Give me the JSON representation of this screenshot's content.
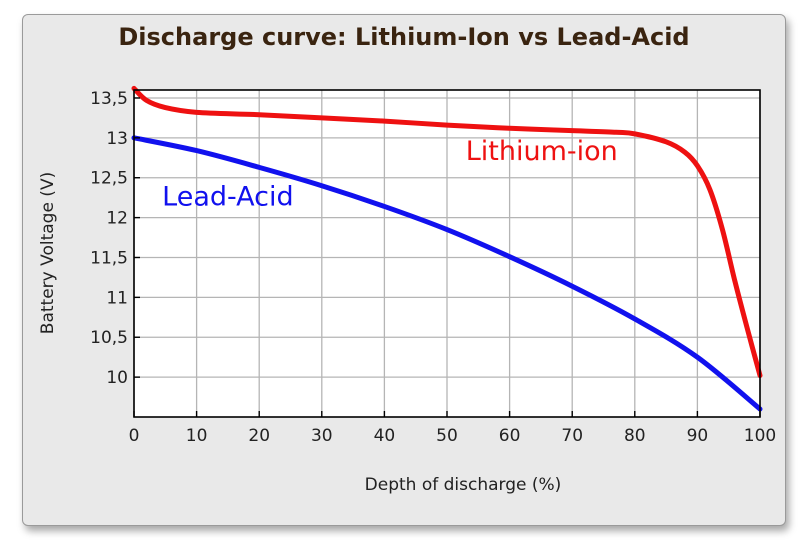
{
  "chart_data": {
    "type": "line",
    "title": "Discharge curve: Lithium-Ion vs Lead-Acid",
    "xlabel": "Depth of discharge (%)",
    "ylabel": "Battery Voltage (V)",
    "xlim": [
      0,
      100
    ],
    "ylim": [
      9.5,
      13.6
    ],
    "x_ticks": [
      {
        "v": 0,
        "label": "0"
      },
      {
        "v": 10,
        "label": "10"
      },
      {
        "v": 20,
        "label": "20"
      },
      {
        "v": 30,
        "label": "30"
      },
      {
        "v": 40,
        "label": "40"
      },
      {
        "v": 50,
        "label": "50"
      },
      {
        "v": 60,
        "label": "60"
      },
      {
        "v": 70,
        "label": "70"
      },
      {
        "v": 80,
        "label": "80"
      },
      {
        "v": 90,
        "label": "90"
      },
      {
        "v": 100,
        "label": "100"
      }
    ],
    "y_ticks": [
      {
        "v": 10,
        "label": "10"
      },
      {
        "v": 10.5,
        "label": "10,5"
      },
      {
        "v": 11,
        "label": "11"
      },
      {
        "v": 11.5,
        "label": "11,5"
      },
      {
        "v": 12,
        "label": "12"
      },
      {
        "v": 12.5,
        "label": "12,5"
      },
      {
        "v": 13,
        "label": "13"
      },
      {
        "v": 13.5,
        "label": "13,5"
      }
    ],
    "grid": true,
    "series": [
      {
        "name": "Lithium-ion",
        "color": "#ee1111",
        "x": [
          0,
          2,
          5,
          10,
          20,
          30,
          40,
          50,
          60,
          70,
          77,
          80,
          85,
          88,
          90,
          92,
          94,
          96,
          98,
          100
        ],
        "y": [
          13.62,
          13.47,
          13.38,
          13.32,
          13.29,
          13.25,
          13.21,
          13.16,
          13.12,
          13.09,
          13.07,
          13.05,
          12.95,
          12.82,
          12.65,
          12.35,
          11.85,
          11.2,
          10.6,
          10.02
        ]
      },
      {
        "name": "Lead-Acid",
        "color": "#1111ee",
        "x": [
          0,
          10,
          20,
          30,
          40,
          50,
          60,
          70,
          80,
          90,
          100
        ],
        "y": [
          13.0,
          12.84,
          12.63,
          12.4,
          12.14,
          11.85,
          11.51,
          11.14,
          10.73,
          10.25,
          9.6
        ]
      }
    ],
    "annotations": [
      {
        "text": "Lithium-ion",
        "x": 53,
        "y": 12.72,
        "color": "#ee1111"
      },
      {
        "text": "Lead-Acid",
        "x": 4.5,
        "y": 12.15,
        "color": "#1111ee"
      }
    ]
  }
}
